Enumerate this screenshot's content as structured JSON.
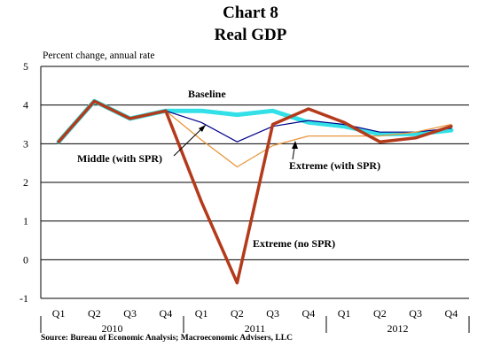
{
  "chart_data": {
    "type": "line",
    "title": "Chart 8",
    "subtitle": "Real GDP",
    "ylabel": "Percent change, annual rate",
    "ylim": [
      -1,
      5
    ],
    "yticks": [
      -1,
      0,
      1,
      2,
      3,
      4,
      5
    ],
    "categories": [
      "Q1",
      "Q2",
      "Q3",
      "Q4",
      "Q1",
      "Q2",
      "Q3",
      "Q4",
      "Q1",
      "Q2",
      "Q3",
      "Q4"
    ],
    "year_labels": [
      "2010",
      "2011",
      "2012"
    ],
    "grid": true,
    "source": "Source: Bureau of Economic Analysis; Macroeconomic Advisers, LLC",
    "series": [
      {
        "name": "Baseline",
        "color": "#33e0e8",
        "values": [
          3.05,
          4.1,
          3.65,
          3.85,
          3.85,
          3.75,
          3.85,
          3.55,
          3.45,
          3.25,
          3.25,
          3.35
        ]
      },
      {
        "name": "Middle (with SPR)",
        "color": "#00008b",
        "values": [
          3.05,
          4.1,
          3.65,
          3.85,
          3.55,
          3.05,
          3.45,
          3.6,
          3.5,
          3.3,
          3.3,
          3.4
        ]
      },
      {
        "name": "Extreme (with SPR)",
        "color": "#e8963c",
        "values": [
          3.05,
          4.1,
          3.65,
          3.85,
          3.1,
          2.4,
          2.95,
          3.2,
          3.2,
          3.2,
          3.3,
          3.5
        ]
      },
      {
        "name": "Extreme (no SPR)",
        "color": "#b33a1a",
        "values": [
          3.05,
          4.1,
          3.65,
          3.85,
          1.5,
          -0.6,
          3.5,
          3.9,
          3.55,
          3.05,
          3.15,
          3.45
        ]
      }
    ]
  }
}
